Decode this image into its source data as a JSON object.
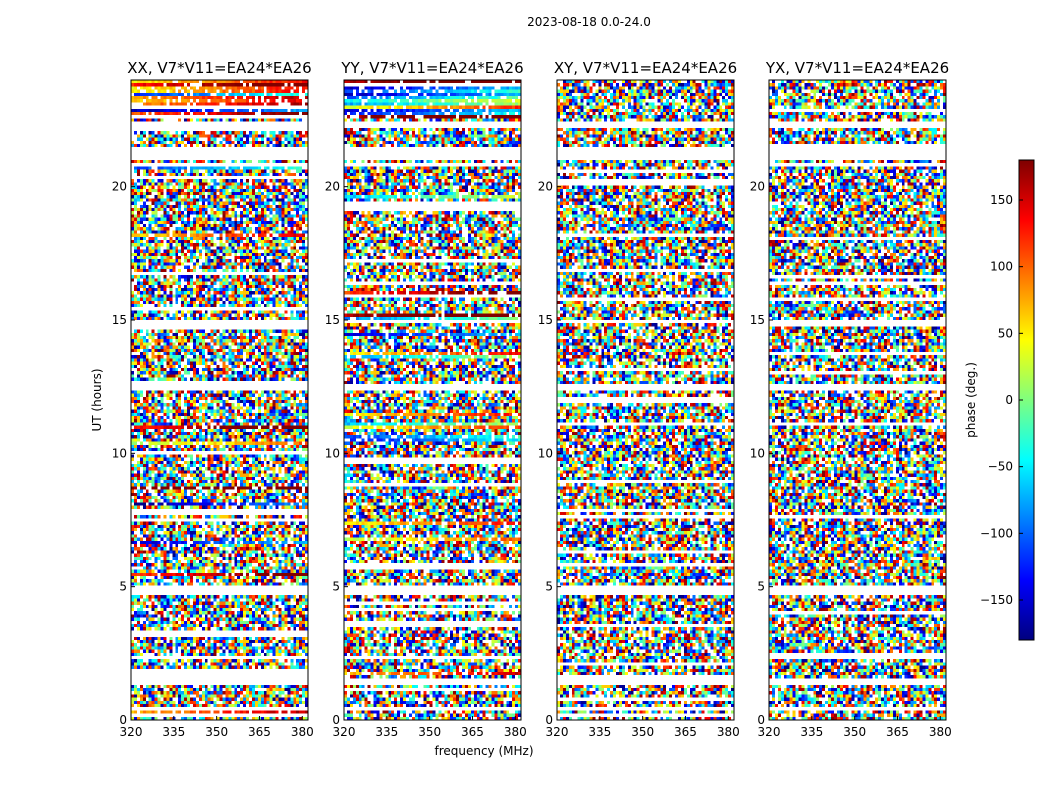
{
  "suptitle": "2023-08-18 0.0-24.0",
  "chart_data": {
    "type": "heatmap",
    "suptitle": "2023-08-18 0.0-24.0",
    "xlabel": "frequency (MHz)",
    "ylabel": "UT (hours)",
    "xlim": [
      320,
      382
    ],
    "ylim": [
      0,
      24
    ],
    "xticks": [
      320,
      335,
      350,
      365,
      380
    ],
    "yticks": [
      0,
      5,
      10,
      15,
      20
    ],
    "colorbar": {
      "label": "phase (deg.)",
      "range": [
        -180,
        180
      ],
      "ticks": [
        150,
        100,
        50,
        0,
        -50,
        -100,
        -150
      ],
      "colormap": "jet",
      "colors": [
        "#00007f",
        "#0000ff",
        "#007fff",
        "#00ffff",
        "#7fff7f",
        "#ffff00",
        "#ff7f00",
        "#ff0000",
        "#7f0000"
      ]
    },
    "panels": [
      {
        "title": "XX, V7*V11=EA24*EA26"
      },
      {
        "title": "YY, V7*V11=EA24*EA26"
      },
      {
        "title": "XY, V7*V11=EA24*EA26"
      },
      {
        "title": "YX, V7*V11=EA24*EA26"
      }
    ],
    "flagged_gaps_hours": [
      [
        0.4,
        0.5
      ],
      [
        1.35,
        1.5
      ],
      [
        4.65,
        5.0
      ],
      [
        12.4,
        12.55
      ],
      [
        14.9,
        15.05
      ],
      [
        20.95,
        21.45
      ],
      [
        22.25,
        22.45
      ]
    ]
  }
}
